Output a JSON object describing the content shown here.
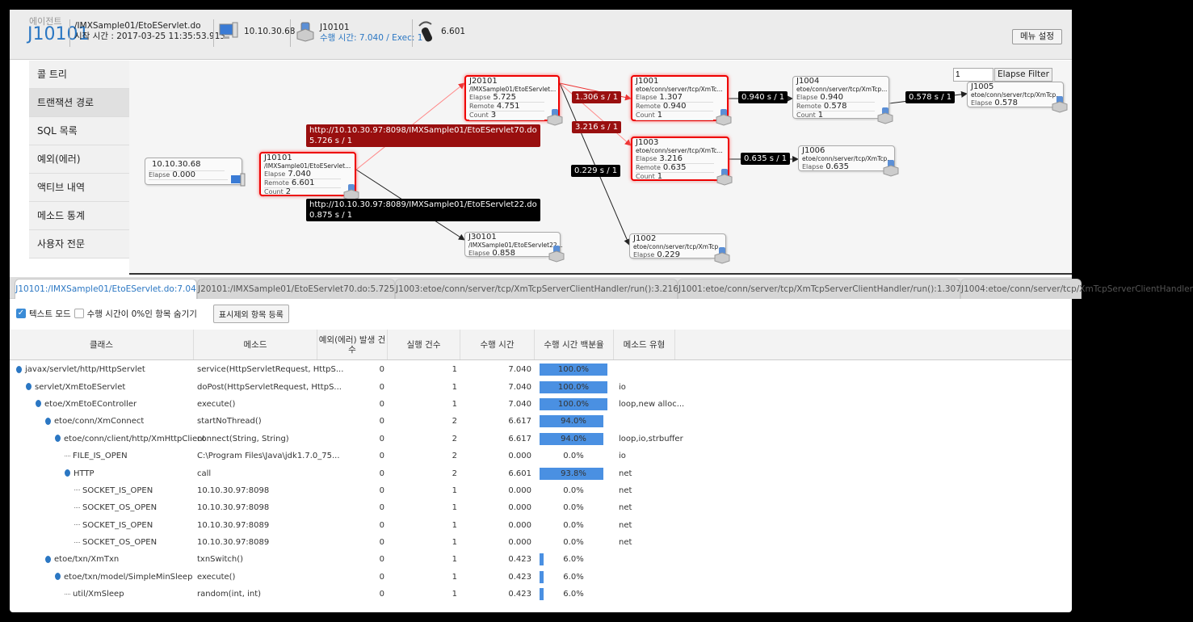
{
  "header": {
    "agent_label": "에이전트",
    "agent_id": "J10101",
    "url": "/IMXSample01/EtoEServlet.do",
    "start_time": "시작 시간 : 2017-03-25 11:35:53.913",
    "client_ip": "10.10.30.68",
    "server_id": "J10101",
    "exec_info": "수행 시간: 7.040 / Exec: 1",
    "remote_time": "6.601",
    "menu_button": "메뉴 설정"
  },
  "sidebar": {
    "items": [
      {
        "label": "콜 트리"
      },
      {
        "label": "트랜잭션 경로"
      },
      {
        "label": "SQL 목록"
      },
      {
        "label": "예외(에러)"
      },
      {
        "label": "액티브 내역"
      },
      {
        "label": "메소드 통계"
      },
      {
        "label": "사용자 전문"
      }
    ],
    "active": 1
  },
  "graph": {
    "filter_value": "1",
    "filter_button": "Elapse Filter",
    "nodes": {
      "client": {
        "id": "10.10.30.68",
        "elapse": "0.000"
      },
      "j10101": {
        "id": "J10101",
        "path": "/IMXSample01/EtoEServlet...",
        "elapse": "7.040",
        "remote": "6.601",
        "count": "2"
      },
      "j20101": {
        "id": "J20101",
        "path": "/IMXSample01/EtoEServlet...",
        "elapse": "5.725",
        "remote": "4.751",
        "count": "3"
      },
      "j30101": {
        "id": "J30101",
        "path": "/IMXSample01/EtoEServlet22...",
        "elapse": "0.858"
      },
      "j1001": {
        "id": "J1001",
        "path": "etoe/conn/server/tcp/XmTc...",
        "elapse": "1.307",
        "remote": "0.940",
        "count": "1"
      },
      "j1003": {
        "id": "J1003",
        "path": "etoe/conn/server/tcp/XmTc...",
        "elapse": "3.216",
        "remote": "0.635",
        "count": "1"
      },
      "j1002": {
        "id": "J1002",
        "path": "etoe/conn/server/tcp/XmTcp...",
        "elapse": "0.229"
      },
      "j1004": {
        "id": "J1004",
        "path": "etoe/conn/server/tcp/XmTcp...",
        "elapse": "0.940",
        "remote": "0.578",
        "count": "1"
      },
      "j1006": {
        "id": "J1006",
        "path": "etoe/conn/server/tcp/XmTcp...",
        "elapse": "0.635"
      },
      "j1005": {
        "id": "J1005",
        "path": "etoe/conn/server/tcp/XmTcp...",
        "elapse": "0.578"
      }
    },
    "labels": {
      "elapse": "Elapse",
      "remote": "Remote",
      "count": "Count"
    },
    "edges": {
      "e70_url": "http://10.10.30.97:8098/IMXSample01/EtoEServlet70.do",
      "e70_time": "5.726 s / 1",
      "e22_url": "http://10.10.30.97:8089/IMXSample01/EtoEServlet22.do",
      "e22_time": "0.875 s / 1",
      "e1001": "1.306 s / 1",
      "e1003": "3.216 s / 1",
      "e1002": "0.229 s / 1",
      "e1004": "0.940 s / 1",
      "e1005": "0.578 s / 1",
      "e1006": "0.635 s / 1"
    }
  },
  "tabs": [
    {
      "label": "J10101:/IMXSample01/EtoEServlet.do:7.04"
    },
    {
      "label": "J20101:/IMXSample01/EtoEServlet70.do:5.725"
    },
    {
      "label": "J1003:etoe/conn/server/tcp/XmTcpServerClientHandler/run():3.216"
    },
    {
      "label": "J1001:etoe/conn/server/tcp/XmTcpServerClientHandler/run():1.307"
    },
    {
      "label": "J1004:etoe/conn/server/tcp/XmTcpServerClientHandler"
    }
  ],
  "toolbar": {
    "text_mode": "텍스트 모드",
    "text_mode_checked": true,
    "hide_zero": "수행 시간이 0%인 항목 숨기기",
    "hide_zero_checked": false,
    "register_button": "표시제외 항목 등록"
  },
  "table": {
    "columns": [
      "클래스",
      "메소드",
      "예외(에러) 발생 건수",
      "실행 건수",
      "수행 시간",
      "수행 시간 백분율",
      "메소드 유형"
    ],
    "rows": [
      {
        "level": 0,
        "expand": true,
        "class": "javax/servlet/http/HttpServlet",
        "method": "service(HttpServletRequest, HttpS...",
        "errors": "0",
        "execs": "1",
        "time": "7.040",
        "pct": 100.0,
        "pct_label": "100.0%",
        "type": ""
      },
      {
        "level": 1,
        "expand": true,
        "class": "servlet/XmEtoEServlet",
        "method": "doPost(HttpServletRequest, HttpS...",
        "errors": "0",
        "execs": "1",
        "time": "7.040",
        "pct": 100.0,
        "pct_label": "100.0%",
        "type": "io"
      },
      {
        "level": 2,
        "expand": true,
        "class": "etoe/XmEtoEController",
        "method": "execute()",
        "errors": "0",
        "execs": "1",
        "time": "7.040",
        "pct": 100.0,
        "pct_label": "100.0%",
        "type": "loop,new alloc..."
      },
      {
        "level": 3,
        "expand": true,
        "class": "etoe/conn/XmConnect",
        "method": "startNoThread()",
        "errors": "0",
        "execs": "2",
        "time": "6.617",
        "pct": 94.0,
        "pct_label": "94.0%",
        "type": ""
      },
      {
        "level": 4,
        "expand": true,
        "class": "etoe/conn/client/http/XmHttpClient",
        "method": "connect(String, String)",
        "errors": "0",
        "execs": "2",
        "time": "6.617",
        "pct": 94.0,
        "pct_label": "94.0%",
        "type": "loop,io,strbuffer"
      },
      {
        "level": 5,
        "expand": false,
        "class": "FILE_IS_OPEN",
        "method": "C:\\Program Files\\Java\\jdk1.7.0_75...",
        "errors": "0",
        "execs": "2",
        "time": "0.000",
        "pct": 0,
        "pct_label": "0.0%",
        "type": "io"
      },
      {
        "level": 5,
        "expand": true,
        "class": "HTTP",
        "method": "call",
        "errors": "0",
        "execs": "2",
        "time": "6.601",
        "pct": 93.8,
        "pct_label": "93.8%",
        "type": "net"
      },
      {
        "level": 6,
        "expand": false,
        "class": "SOCKET_IS_OPEN",
        "method": "10.10.30.97:8098",
        "errors": "0",
        "execs": "1",
        "time": "0.000",
        "pct": 0,
        "pct_label": "0.0%",
        "type": "net"
      },
      {
        "level": 6,
        "expand": false,
        "class": "SOCKET_OS_OPEN",
        "method": "10.10.30.97:8098",
        "errors": "0",
        "execs": "1",
        "time": "0.000",
        "pct": 0,
        "pct_label": "0.0%",
        "type": "net"
      },
      {
        "level": 6,
        "expand": false,
        "class": "SOCKET_IS_OPEN",
        "method": "10.10.30.97:8089",
        "errors": "0",
        "execs": "1",
        "time": "0.000",
        "pct": 0,
        "pct_label": "0.0%",
        "type": "net"
      },
      {
        "level": 6,
        "expand": false,
        "class": "SOCKET_OS_OPEN",
        "method": "10.10.30.97:8089",
        "errors": "0",
        "execs": "1",
        "time": "0.000",
        "pct": 0,
        "pct_label": "0.0%",
        "type": "net"
      },
      {
        "level": 3,
        "expand": true,
        "class": "etoe/txn/XmTxn",
        "method": "txnSwitch()",
        "errors": "0",
        "execs": "1",
        "time": "0.423",
        "pct": 6.0,
        "pct_label": "6.0%",
        "type": ""
      },
      {
        "level": 4,
        "expand": true,
        "class": "etoe/txn/model/SimpleMinSleep",
        "method": "execute()",
        "errors": "0",
        "execs": "1",
        "time": "0.423",
        "pct": 6.0,
        "pct_label": "6.0%",
        "type": ""
      },
      {
        "level": 5,
        "expand": false,
        "class": "util/XmSleep",
        "method": "random(int, int)",
        "errors": "0",
        "execs": "1",
        "time": "0.423",
        "pct": 6.0,
        "pct_label": "6.0%",
        "type": ""
      }
    ]
  },
  "colors": {
    "accent": "#2b77c3",
    "bar": "#4a90e2",
    "hot_edge": "#990f0f",
    "hot_border": "#ee0000"
  }
}
